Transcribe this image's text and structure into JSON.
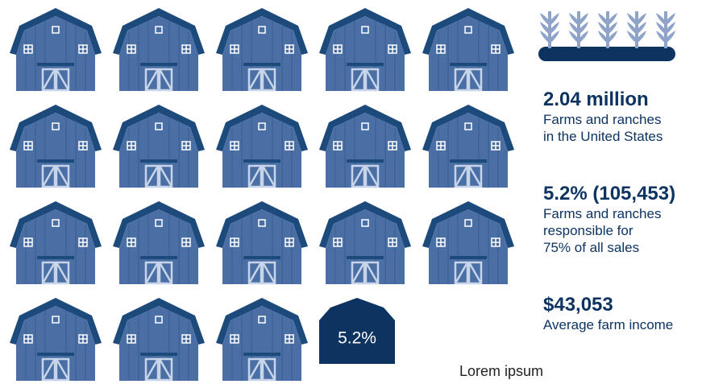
{
  "highlight_barn": {
    "label": "5.2%"
  },
  "stats": [
    {
      "value": "2.04 million",
      "description": [
        "Farms and ranches",
        "in the United States"
      ]
    },
    {
      "value": "5.2% (105,453)",
      "description": [
        "Farms and ranches",
        "responsible for",
        "75% of all sales"
      ]
    },
    {
      "value": "$43,053",
      "description": [
        "Average farm income"
      ]
    }
  ],
  "footer": "Lorem ipsum"
}
